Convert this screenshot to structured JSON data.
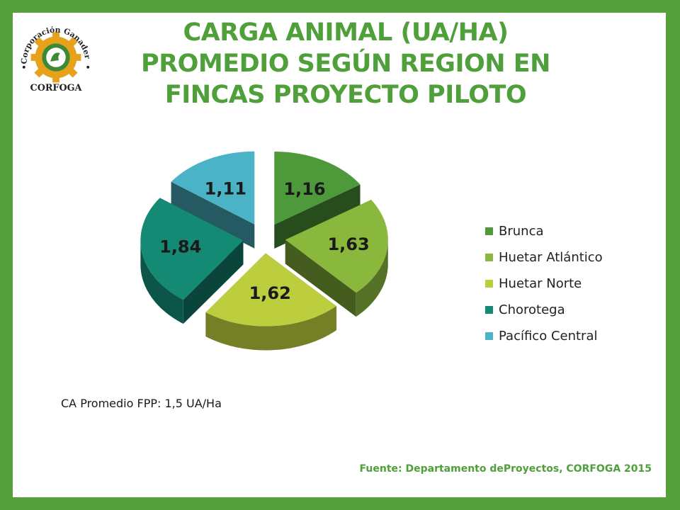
{
  "title": "CARGA ANIMAL (UA/HA) PROMEDIO SEGÚN REGION EN FINCAS PROYECTO PILOTO",
  "logo": {
    "icon": "corfoga-logo-icon",
    "text_top": "Corporación Ganadera",
    "text_bottom": "CORFOGA"
  },
  "note": "CA Promedio FPP: 1,5 UA/Ha",
  "source": "Fuente: Departamento deProyectos, CORFOGA 2015",
  "colors": {
    "frame": "#56a03c",
    "title": "#4f9f3a"
  },
  "chart_data": {
    "type": "pie",
    "title": "",
    "legend_position": "right",
    "exploded": true,
    "three_d": true,
    "categories": [
      "Brunca",
      "Huetar Atlántico",
      "Huetar Norte",
      "Chorotega",
      "Pacífico Central"
    ],
    "values": [
      1.16,
      1.63,
      1.62,
      1.84,
      1.11
    ],
    "labels": [
      "1,16",
      "1,63",
      "1,62",
      "1,84",
      "1,11"
    ],
    "colors": [
      "#4e9a3a",
      "#8ab83d",
      "#bccd3e",
      "#148a75",
      "#4ab3c6"
    ]
  }
}
